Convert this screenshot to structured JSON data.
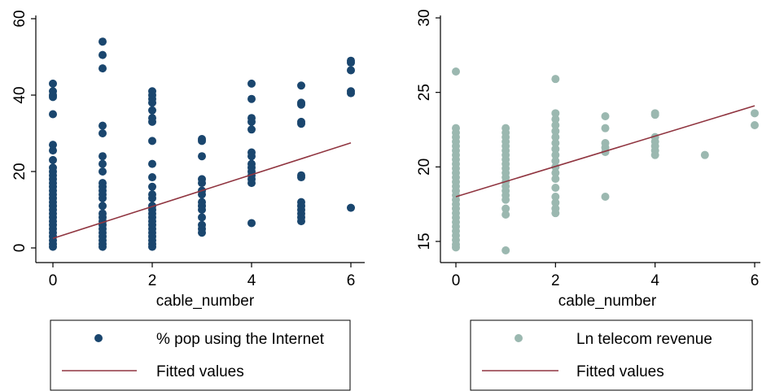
{
  "chart_data": [
    {
      "type": "scatter",
      "xlabel": "cable_number",
      "ylabel": "",
      "xlim": [
        0,
        6
      ],
      "ylim": [
        0,
        60
      ],
      "x_ticks": [
        "0",
        "2",
        "4",
        "6"
      ],
      "y_ticks": [
        "0",
        "20",
        "40",
        "60"
      ],
      "grid": false,
      "legend": {
        "placement": "bottom",
        "entries": [
          "% pop using the Internet",
          "Fitted values"
        ]
      },
      "colors": {
        "points": "#1a466e",
        "fit": "#903540"
      },
      "series": [
        {
          "name": "% pop using the Internet",
          "kind": "points",
          "points": [
            [
              0,
              43
            ],
            [
              0,
              41
            ],
            [
              0,
              40
            ],
            [
              0,
              39.5
            ],
            [
              0,
              35
            ],
            [
              0,
              27
            ],
            [
              0,
              25.5
            ],
            [
              0,
              23
            ],
            [
              0,
              21
            ],
            [
              0,
              20
            ],
            [
              0,
              19
            ],
            [
              0,
              18
            ],
            [
              0,
              17
            ],
            [
              0,
              16
            ],
            [
              0,
              15
            ],
            [
              0,
              14
            ],
            [
              0,
              13
            ],
            [
              0,
              12
            ],
            [
              0,
              11
            ],
            [
              0,
              10
            ],
            [
              0,
              9
            ],
            [
              0,
              8
            ],
            [
              0,
              7
            ],
            [
              0,
              6
            ],
            [
              0,
              5
            ],
            [
              0,
              4
            ],
            [
              0,
              3
            ],
            [
              0,
              2
            ],
            [
              0,
              1
            ],
            [
              0,
              0.3
            ],
            [
              1,
              54
            ],
            [
              1,
              50.5
            ],
            [
              1,
              47
            ],
            [
              1,
              32
            ],
            [
              1,
              30
            ],
            [
              1,
              24
            ],
            [
              1,
              22
            ],
            [
              1,
              20
            ],
            [
              1,
              17
            ],
            [
              1,
              16
            ],
            [
              1,
              15
            ],
            [
              1,
              14
            ],
            [
              1,
              13
            ],
            [
              1,
              11
            ],
            [
              1,
              9
            ],
            [
              1,
              8
            ],
            [
              1,
              7
            ],
            [
              1,
              6
            ],
            [
              1,
              5
            ],
            [
              1,
              4
            ],
            [
              1,
              3
            ],
            [
              1,
              2
            ],
            [
              1,
              1
            ],
            [
              1,
              0.3
            ],
            [
              2,
              41
            ],
            [
              2,
              40
            ],
            [
              2,
              39
            ],
            [
              2,
              38
            ],
            [
              2,
              36
            ],
            [
              2,
              34
            ],
            [
              2,
              33
            ],
            [
              2,
              28
            ],
            [
              2,
              22
            ],
            [
              2,
              18.5
            ],
            [
              2,
              16
            ],
            [
              2,
              14
            ],
            [
              2,
              13
            ],
            [
              2,
              11
            ],
            [
              2,
              10
            ],
            [
              2,
              9
            ],
            [
              2,
              8
            ],
            [
              2,
              7
            ],
            [
              2,
              6
            ],
            [
              2,
              5
            ],
            [
              2,
              4
            ],
            [
              2,
              3
            ],
            [
              2,
              2
            ],
            [
              2,
              1
            ],
            [
              2,
              0.3
            ],
            [
              3,
              28.5
            ],
            [
              3,
              28
            ],
            [
              3,
              24
            ],
            [
              3,
              18
            ],
            [
              3,
              17
            ],
            [
              3,
              15
            ],
            [
              3,
              14
            ],
            [
              3,
              12
            ],
            [
              3,
              11
            ],
            [
              3,
              10
            ],
            [
              3,
              8
            ],
            [
              3,
              6
            ],
            [
              3,
              5
            ],
            [
              3,
              4
            ],
            [
              4,
              43
            ],
            [
              4,
              39
            ],
            [
              4,
              34
            ],
            [
              4,
              33
            ],
            [
              4,
              31
            ],
            [
              4,
              25
            ],
            [
              4,
              24
            ],
            [
              4,
              22
            ],
            [
              4,
              21
            ],
            [
              4,
              20
            ],
            [
              4,
              19
            ],
            [
              4,
              18
            ],
            [
              4,
              17
            ],
            [
              4,
              6.5
            ],
            [
              5,
              42.5
            ],
            [
              5,
              38
            ],
            [
              5,
              37.5
            ],
            [
              5,
              33
            ],
            [
              5,
              32.5
            ],
            [
              5,
              19
            ],
            [
              5,
              18.5
            ],
            [
              5,
              12
            ],
            [
              5,
              11
            ],
            [
              5,
              10
            ],
            [
              5,
              9
            ],
            [
              5,
              8
            ],
            [
              5,
              7
            ],
            [
              6,
              49
            ],
            [
              6,
              48.5
            ],
            [
              6,
              46.5
            ],
            [
              6,
              41
            ],
            [
              6,
              40.5
            ],
            [
              6,
              10.5
            ]
          ]
        },
        {
          "name": "Fitted values",
          "kind": "line",
          "points": [
            [
              0,
              2.5
            ],
            [
              6,
              27.5
            ]
          ]
        }
      ]
    },
    {
      "type": "scatter",
      "xlabel": "cable_number",
      "ylabel": "",
      "xlim": [
        0,
        6
      ],
      "ylim": [
        15,
        30
      ],
      "x_ticks": [
        "0",
        "2",
        "4",
        "6"
      ],
      "y_ticks": [
        "15",
        "20",
        "25",
        "30"
      ],
      "grid": false,
      "legend": {
        "placement": "bottom",
        "entries": [
          "Ln telecom revenue",
          "Fitted values"
        ]
      },
      "colors": {
        "points": "#9bb8b0",
        "fit": "#903540"
      },
      "series": [
        {
          "name": "Ln telecom revenue",
          "kind": "points",
          "points": [
            [
              0,
              26.4
            ],
            [
              0,
              22.6
            ],
            [
              0,
              22.3
            ],
            [
              0,
              22
            ],
            [
              0,
              21.7
            ],
            [
              0,
              21.4
            ],
            [
              0,
              21.1
            ],
            [
              0,
              20.8
            ],
            [
              0,
              20.5
            ],
            [
              0,
              20.2
            ],
            [
              0,
              19.9
            ],
            [
              0,
              19.6
            ],
            [
              0,
              19.3
            ],
            [
              0,
              19
            ],
            [
              0,
              18.7
            ],
            [
              0,
              18.4
            ],
            [
              0,
              18.1
            ],
            [
              0,
              17.8
            ],
            [
              0,
              17.5
            ],
            [
              0,
              17.2
            ],
            [
              0,
              16.9
            ],
            [
              0,
              16.6
            ],
            [
              0,
              16.3
            ],
            [
              0,
              16
            ],
            [
              0,
              15.7
            ],
            [
              0,
              15.4
            ],
            [
              0,
              15.1
            ],
            [
              0,
              14.8
            ],
            [
              0,
              14.6
            ],
            [
              1,
              22.6
            ],
            [
              1,
              22.3
            ],
            [
              1,
              22
            ],
            [
              1,
              21.7
            ],
            [
              1,
              21.4
            ],
            [
              1,
              21.1
            ],
            [
              1,
              20.8
            ],
            [
              1,
              20.5
            ],
            [
              1,
              20.2
            ],
            [
              1,
              19.9
            ],
            [
              1,
              19.6
            ],
            [
              1,
              19.3
            ],
            [
              1,
              19
            ],
            [
              1,
              18.7
            ],
            [
              1,
              18.4
            ],
            [
              1,
              18.1
            ],
            [
              1,
              17.8
            ],
            [
              1,
              17.2
            ],
            [
              1,
              16.8
            ],
            [
              1,
              14.4
            ],
            [
              2,
              25.9
            ],
            [
              2,
              23.6
            ],
            [
              2,
              23.2
            ],
            [
              2,
              22.8
            ],
            [
              2,
              22.4
            ],
            [
              2,
              22
            ],
            [
              2,
              21.6
            ],
            [
              2,
              21.2
            ],
            [
              2,
              20.8
            ],
            [
              2,
              20.4
            ],
            [
              2,
              20
            ],
            [
              2,
              19.6
            ],
            [
              2,
              19.2
            ],
            [
              2,
              18.6
            ],
            [
              2,
              18
            ],
            [
              2,
              17.6
            ],
            [
              2,
              17.2
            ],
            [
              2,
              16.9
            ],
            [
              3,
              23.4
            ],
            [
              3,
              22.6
            ],
            [
              3,
              21.6
            ],
            [
              3,
              21.3
            ],
            [
              3,
              21
            ],
            [
              3,
              18
            ],
            [
              4,
              23.6
            ],
            [
              4,
              23.5
            ],
            [
              4,
              22
            ],
            [
              4,
              21.7
            ],
            [
              4,
              21.4
            ],
            [
              4,
              21.1
            ],
            [
              4,
              20.8
            ],
            [
              5,
              20.8
            ],
            [
              6,
              23.6
            ],
            [
              6,
              22.8
            ]
          ]
        },
        {
          "name": "Fitted values",
          "kind": "line",
          "points": [
            [
              0,
              18
            ],
            [
              6,
              24.1
            ]
          ]
        }
      ]
    }
  ]
}
